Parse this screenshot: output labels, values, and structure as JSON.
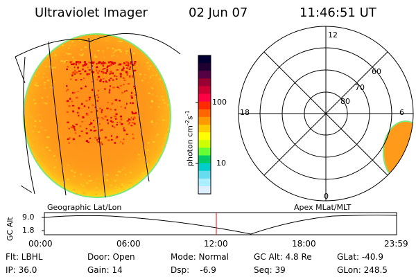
{
  "header": {
    "title": "Ultraviolet Imager",
    "date": "02 Jun 07",
    "time": "11:46:51 UT"
  },
  "colorbar": {
    "label_main": "photon cm",
    "label_exp1": "-2",
    "label_mid": "s",
    "label_exp2": "-1",
    "tick_100": "100",
    "tick_10": "10",
    "colors": [
      "#000033",
      "#200033",
      "#550044",
      "#990033",
      "#cc0033",
      "#ff0044",
      "#ff2a00",
      "#ff6600",
      "#ff9900",
      "#ffcc00",
      "#ffff00",
      "#ccff00",
      "#66ff33",
      "#00cc66",
      "#00cccc",
      "#66ddee",
      "#aaeeff",
      "#ddeeff"
    ]
  },
  "polar_plot": {
    "mlt_labels": {
      "top": "12",
      "left": "18",
      "right": "6",
      "bottom": "0"
    },
    "lat_labels": [
      "60",
      "70",
      "80"
    ]
  },
  "timeline": {
    "left_title": "Geographic Lat/Lon",
    "right_title": "Apex MLat/MLT",
    "y_label": "GC Alt",
    "y_ticks": [
      "9.0",
      "1.8"
    ],
    "x_ticks": [
      "00:00",
      "06:00",
      "12:00",
      "18:00",
      "23:59"
    ],
    "marker_color": "#ff0000"
  },
  "info": {
    "flt": "Flt: LBHL",
    "ip": "IP: 36.0",
    "door": "Door: Open",
    "gain": "Gain: 14",
    "mode": "Mode: Normal",
    "dsp": "Dsp:    -6.9",
    "gcalt": "GC Alt: 4.8 Re",
    "seq": "Seq: 39",
    "glat": "GLat: -40.9",
    "glon": "GLon: 248.5"
  },
  "colors": {
    "disk_main": "#ff9a1a",
    "disk_edge": "#ffd21a",
    "disk_rim": "#7be87b",
    "speckle": "#e00000"
  }
}
